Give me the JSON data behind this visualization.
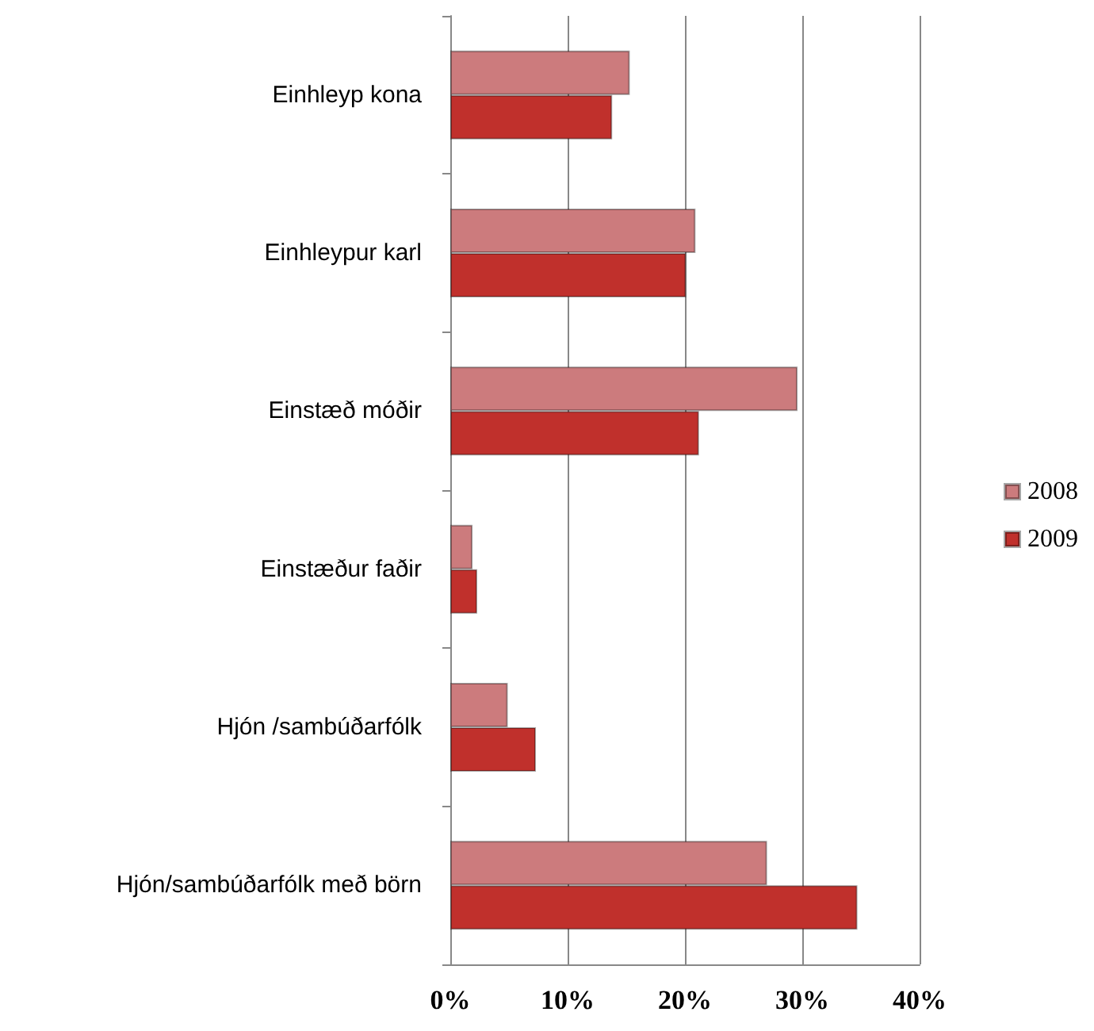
{
  "chart_data": {
    "type": "bar",
    "orientation": "horizontal",
    "categories": [
      "Einhleyp kona",
      "Einhleypur karl",
      "Einstæð móðir",
      "Einstæður faðir",
      "Hjón /sambúðarfólk",
      "Hjón/sambúðarfólk með börn"
    ],
    "series": [
      {
        "name": "2008",
        "color": "#cc7b7d",
        "values": [
          15.3,
          20.9,
          29.6,
          1.9,
          4.9,
          27.0
        ]
      },
      {
        "name": "2009",
        "color": "#c0302c",
        "values": [
          13.8,
          20.1,
          21.2,
          2.3,
          7.3,
          34.7
        ]
      }
    ],
    "xlim": [
      0,
      40
    ],
    "xticks": [
      {
        "value": 0,
        "label": "0%"
      },
      {
        "value": 10,
        "label": "10%"
      },
      {
        "value": 20,
        "label": "20%"
      },
      {
        "value": 30,
        "label": "30%"
      },
      {
        "value": 40,
        "label": "40%"
      }
    ],
    "grid": "x",
    "legend": "right"
  }
}
